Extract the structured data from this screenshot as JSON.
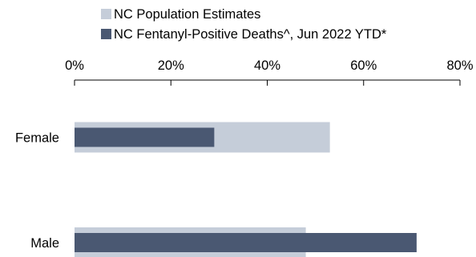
{
  "chart_data": {
    "type": "bar",
    "orientation": "horizontal",
    "categories": [
      "Female",
      "Male"
    ],
    "series": [
      {
        "name": "NC Population Estimates",
        "values": [
          53,
          48
        ],
        "color": "#c5cdd9"
      },
      {
        "name": "NC Fentanyl-Positive Deaths^, Jun 2022 YTD*",
        "values": [
          29,
          71
        ],
        "color": "#4a5872"
      }
    ],
    "x_ticks": [
      "0%",
      "20%",
      "40%",
      "60%",
      "80%"
    ],
    "xlim": [
      0,
      80
    ],
    "axis_position": "top",
    "legend_position": "top",
    "grid": false
  }
}
